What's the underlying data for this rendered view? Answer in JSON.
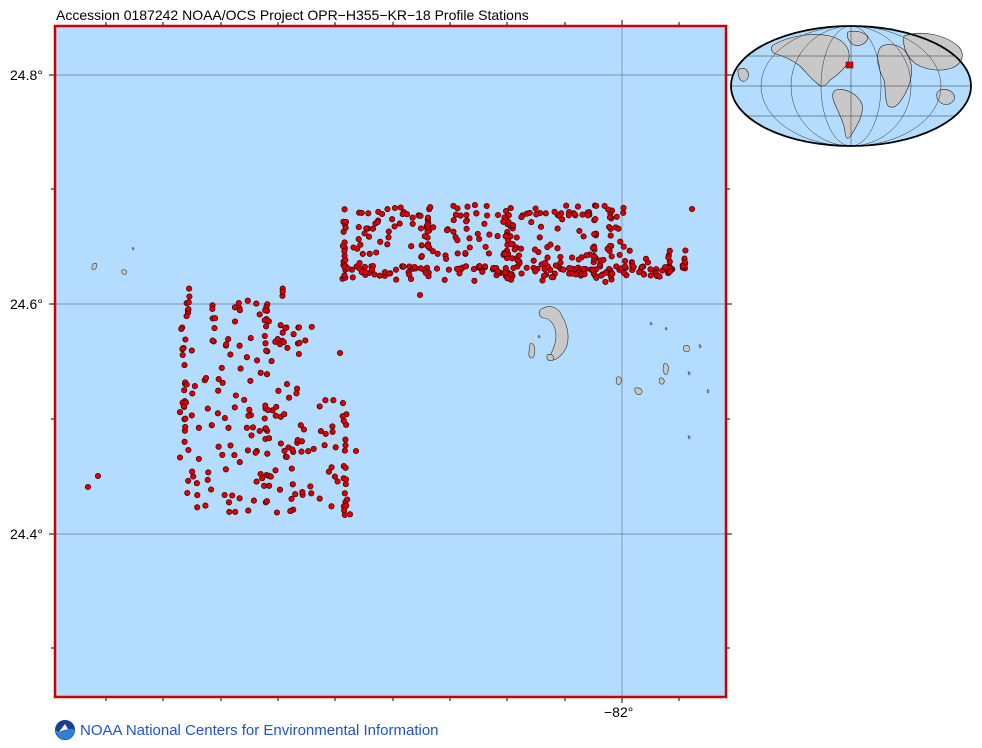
{
  "title": "Accession 0187242 NOAA/OCS Project OPR−H355−KR−18 Profile Stations",
  "axes": {
    "lat_ticks": [
      {
        "value": 24.8,
        "label": "24.8°"
      },
      {
        "value": 24.6,
        "label": "24.6°"
      },
      {
        "value": 24.4,
        "label": "24.4°"
      }
    ],
    "lon_ticks": [
      {
        "value": -82.0,
        "label": "−82°"
      }
    ]
  },
  "colors": {
    "ocean": "#b3dcff",
    "frame": "#cc0000",
    "station_fill": "#dd0000",
    "station_stroke": "#3a0000",
    "land": "#c8c8c8",
    "grid": "#6a7f93",
    "credit_text": "#1e54c8"
  },
  "inset": {
    "icon": "globe-inset-map",
    "marker": "red-location-marker"
  },
  "credit": {
    "logo": "noaa-logo-icon",
    "text": "NOAA National Centers for Environmental Information"
  }
}
